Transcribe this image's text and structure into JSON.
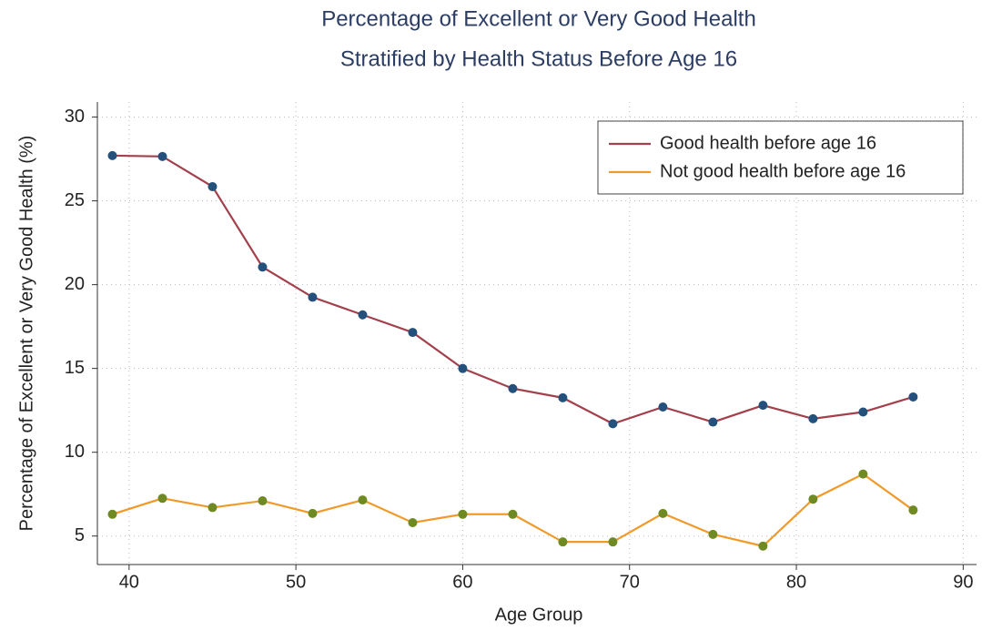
{
  "chart_data": {
    "type": "line",
    "title": [
      "Percentage of Excellent or Very Good Health",
      "Stratified by Health Status Before Age 16"
    ],
    "xlabel": "Age Group",
    "ylabel": "Percentage of Excellent or Very Good Health (%)",
    "x": [
      39,
      42,
      45,
      48,
      51,
      54,
      57,
      60,
      63,
      66,
      69,
      72,
      75,
      78,
      81,
      84,
      87
    ],
    "series": [
      {
        "name": "Good health before age 16",
        "color": "#a2404c",
        "marker_color": "#24507c",
        "values": [
          27.7,
          27.65,
          25.85,
          21.05,
          19.25,
          18.2,
          17.15,
          15.0,
          13.8,
          13.25,
          11.7,
          12.7,
          11.8,
          12.8,
          12.0,
          12.4,
          13.3
        ]
      },
      {
        "name": "Not good health before age 16",
        "color": "#f09a2a",
        "marker_color": "#6f8a22",
        "values": [
          6.3,
          7.25,
          6.7,
          7.1,
          6.35,
          7.15,
          5.8,
          6.3,
          6.3,
          4.65,
          4.65,
          6.35,
          5.1,
          4.4,
          7.2,
          8.7,
          6.55
        ]
      }
    ],
    "xlim": [
      38.1,
      90.8
    ],
    "xticks": [
      40,
      50,
      60,
      70,
      80,
      90
    ],
    "ylim": [
      3.3,
      30.9
    ],
    "yticks": [
      5,
      10,
      15,
      20,
      25,
      30
    ],
    "grid": true,
    "legend": "top-right"
  }
}
